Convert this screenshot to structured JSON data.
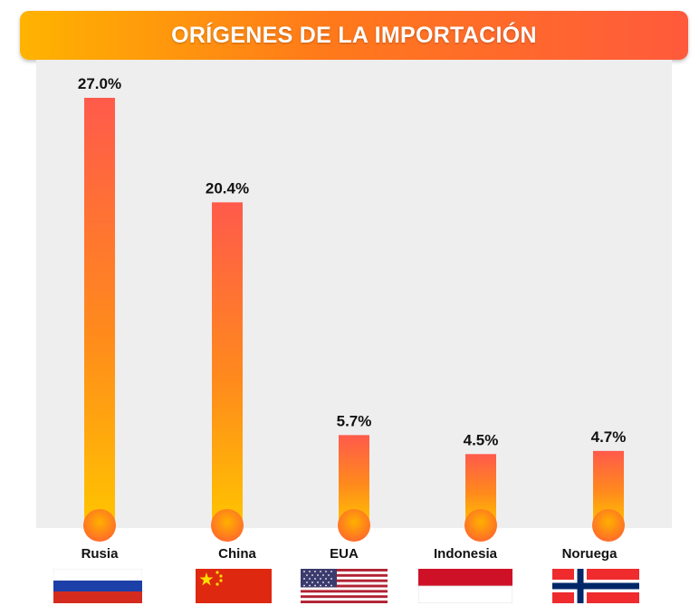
{
  "chart_data": {
    "type": "bar",
    "title": "ORÍGENES DE LA IMPORTACIÓN",
    "categories": [
      "Rusia",
      "China",
      "EUA",
      "Indonesia",
      "Noruega"
    ],
    "values": [
      27.0,
      20.4,
      5.7,
      4.5,
      4.7
    ],
    "value_labels": [
      "27.0%",
      "20.4%",
      "5.7%",
      "4.5%",
      "4.7%"
    ],
    "flags": [
      "russia-flag",
      "china-flag",
      "usa-flag",
      "indonesia-flag",
      "norway-flag"
    ],
    "xlabel": "",
    "ylabel": "",
    "ylim": [
      0,
      27.0
    ],
    "grid": false,
    "legend": "none",
    "colors": {
      "bar_top": "#ff5a4b",
      "bar_bottom": "#ffc400",
      "banner_start": "#ffb300",
      "banner_end": "#ff5a3c",
      "plot_background": "#eeeeee"
    }
  }
}
